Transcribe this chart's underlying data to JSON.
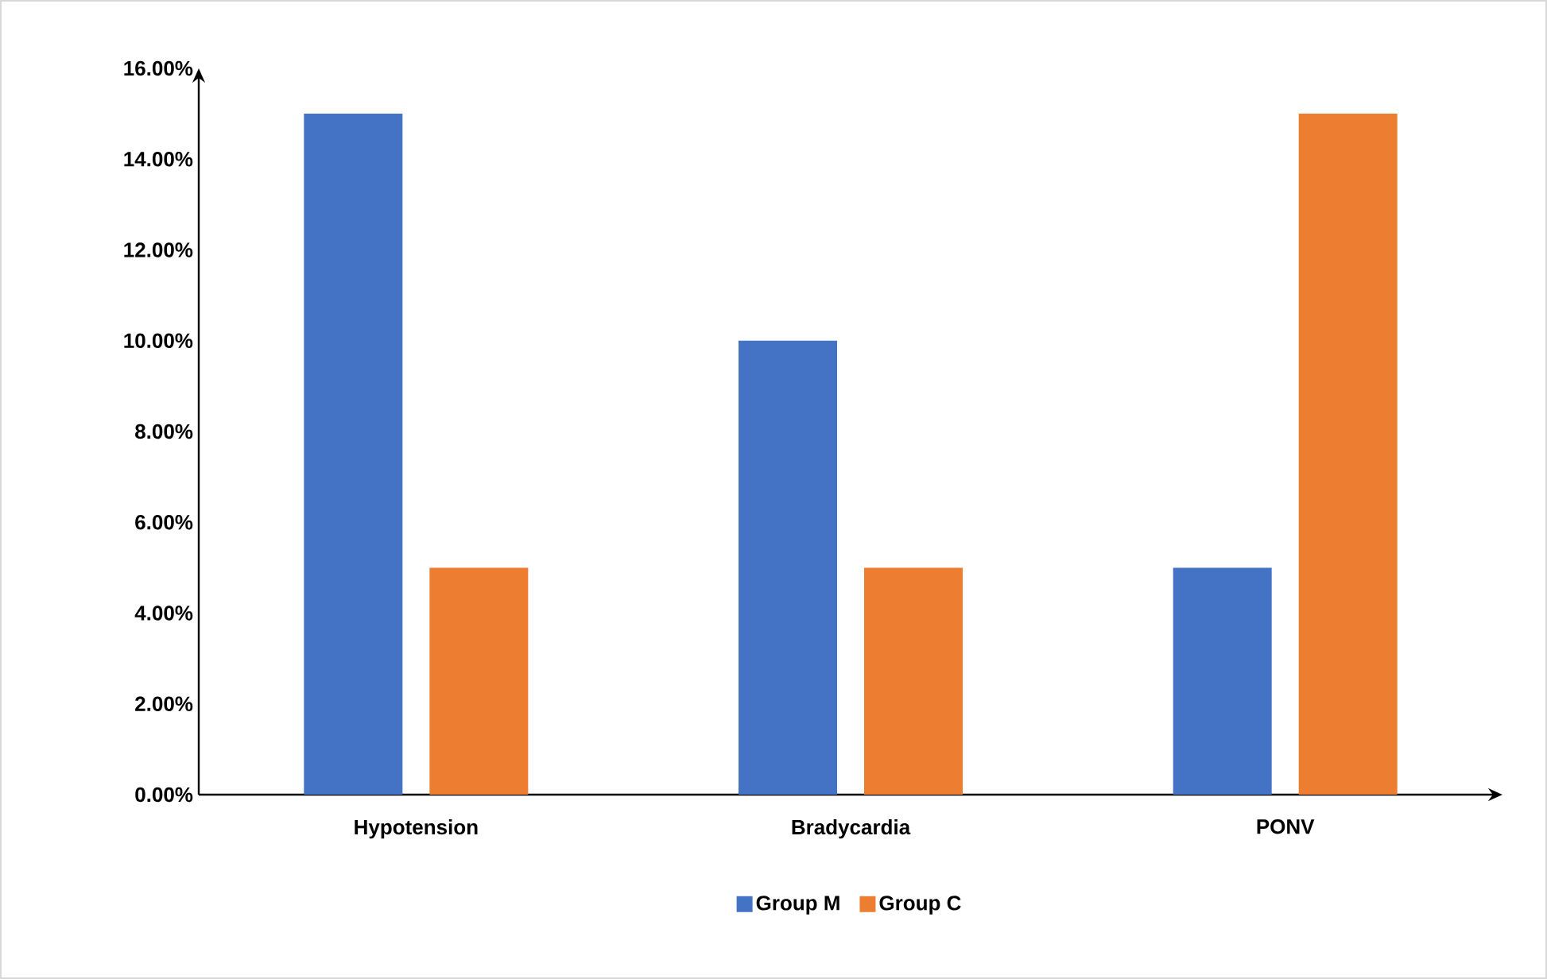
{
  "chart_data": {
    "type": "bar",
    "categories": [
      "Hypotension",
      "Bradycardia",
      "PONV"
    ],
    "series": [
      {
        "name": "Group M",
        "color": "#4472c4",
        "values": [
          15,
          10,
          5
        ]
      },
      {
        "name": "Group C",
        "color": "#ed7d31",
        "values": [
          5,
          5,
          15
        ]
      }
    ],
    "ylim": [
      0,
      16
    ],
    "yticks": [
      {
        "value": 0,
        "label": "0.00%"
      },
      {
        "value": 2,
        "label": "2.00%"
      },
      {
        "value": 4,
        "label": "4.00%"
      },
      {
        "value": 6,
        "label": "6.00%"
      },
      {
        "value": 8,
        "label": "8.00%"
      },
      {
        "value": 10,
        "label": "10.00%"
      },
      {
        "value": 12,
        "label": "12.00%"
      },
      {
        "value": 14,
        "label": "14.00%"
      },
      {
        "value": 16,
        "label": "16.00%"
      }
    ],
    "grid": false,
    "legend": "bottom"
  }
}
